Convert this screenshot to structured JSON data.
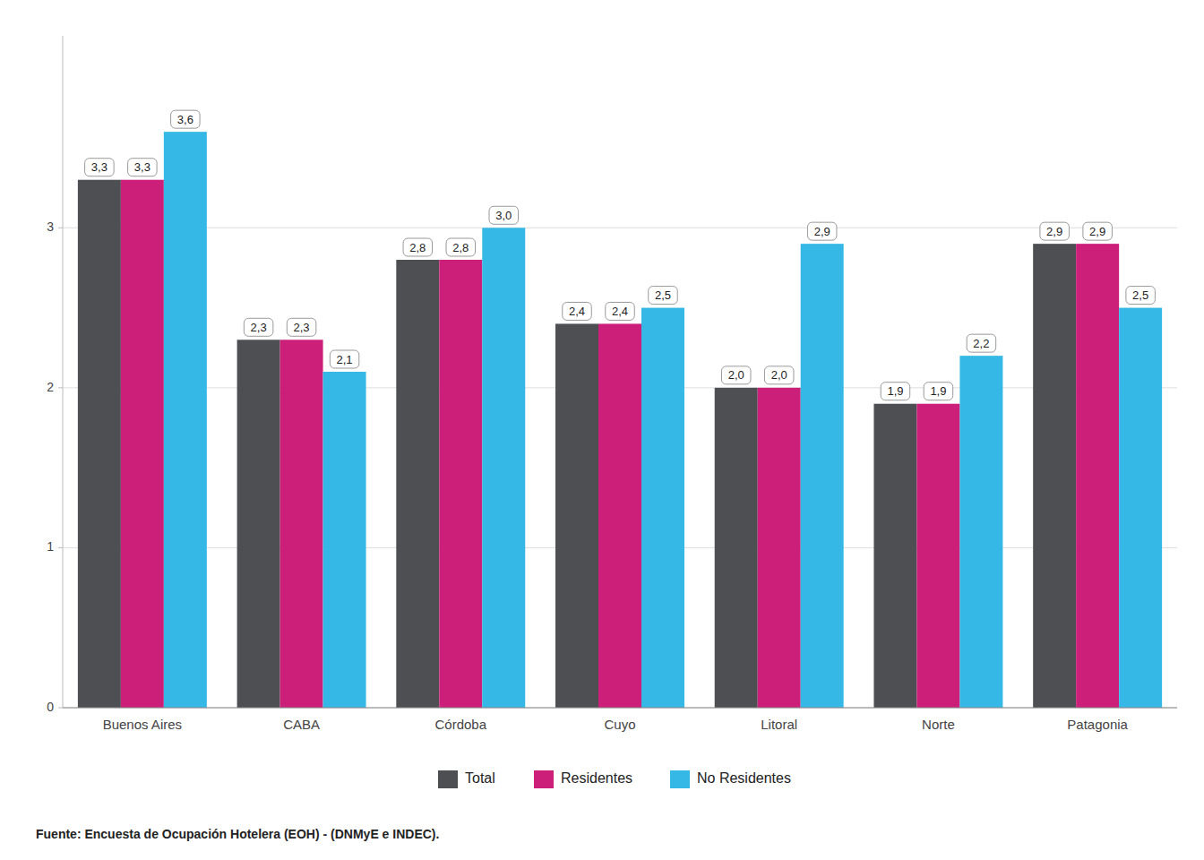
{
  "chart_data": {
    "type": "bar",
    "categories": [
      "Buenos Aires",
      "CABA",
      "Córdoba",
      "Cuyo",
      "Litoral",
      "Norte",
      "Patagonia"
    ],
    "series": [
      {
        "name": "Total",
        "color": "#4d4f53",
        "values": [
          3.3,
          2.3,
          2.8,
          2.4,
          2.0,
          1.9,
          2.9
        ],
        "value_labels": [
          "3,3",
          "2,3",
          "2,8",
          "2,4",
          "2,0",
          "1,9",
          "2,9"
        ]
      },
      {
        "name": "Residentes",
        "color": "#cc1f7a",
        "values": [
          3.3,
          2.3,
          2.8,
          2.4,
          2.0,
          1.9,
          2.9
        ],
        "value_labels": [
          "3,3",
          "2,3",
          "2,8",
          "2,4",
          "2,0",
          "1,9",
          "2,9"
        ]
      },
      {
        "name": "No Residentes",
        "color": "#36b8e6",
        "values": [
          3.6,
          2.1,
          3.0,
          2.5,
          2.9,
          2.2,
          2.5
        ],
        "value_labels": [
          "3,6",
          "2,1",
          "3,0",
          "2,5",
          "2,9",
          "2,2",
          "2,5"
        ]
      }
    ],
    "ylim": [
      0,
      4.2
    ],
    "yticks": [
      0,
      1,
      2,
      3
    ],
    "grid": true,
    "legend": "bottom",
    "data_labels": true,
    "annotations": [
      "Fuente: Encuesta de Ocupación Hotelera (EOH) - (DNMyE e INDEC)."
    ]
  }
}
